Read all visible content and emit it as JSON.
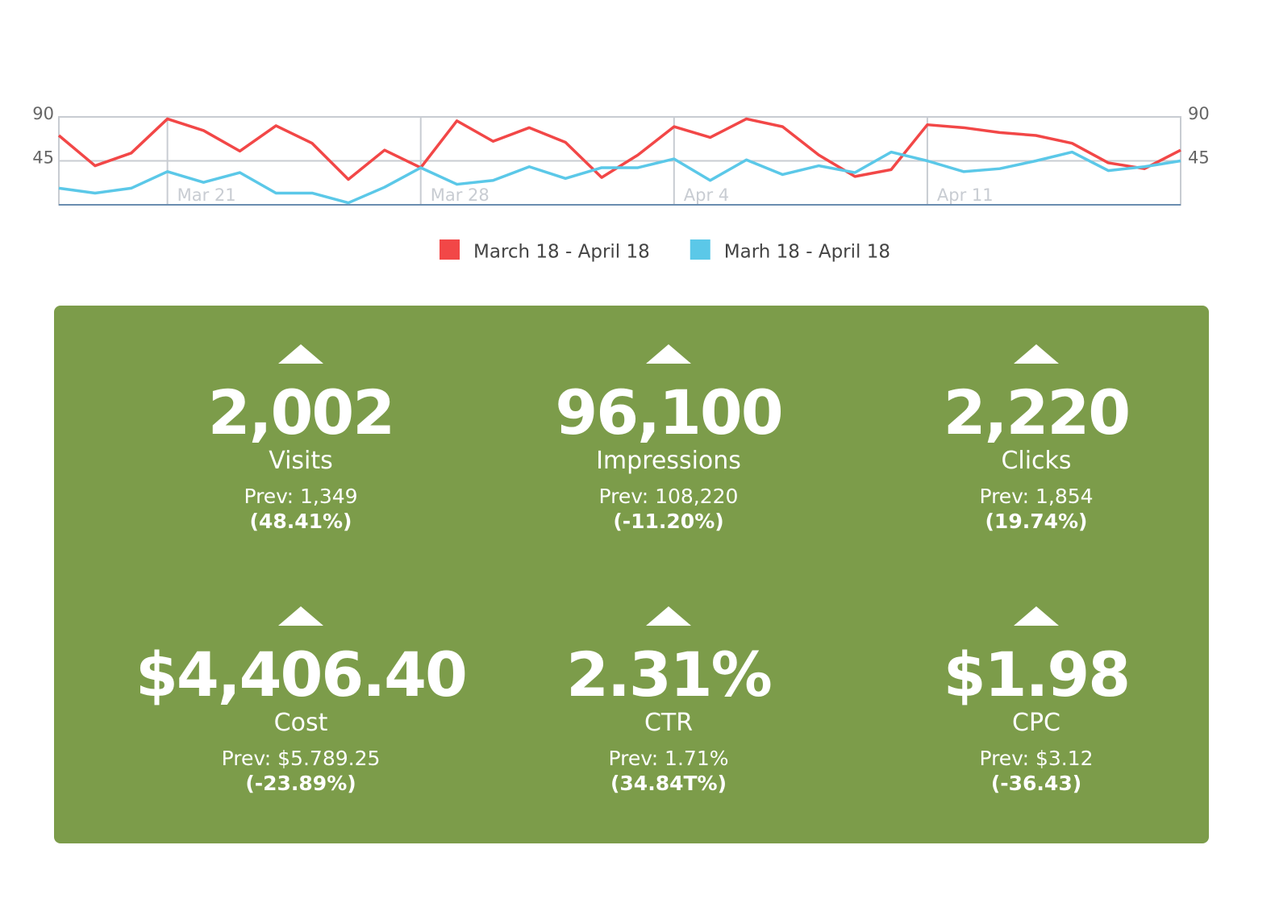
{
  "chart_data": {
    "type": "line",
    "categories": [
      null,
      null,
      null,
      "Mar 21",
      null,
      null,
      null,
      null,
      null,
      null,
      "Mar 28",
      null,
      null,
      null,
      null,
      null,
      null,
      "Apr 4",
      null,
      null,
      null,
      null,
      null,
      null,
      "Apr 11",
      null,
      null,
      null,
      null,
      null,
      null,
      null
    ],
    "series": [
      {
        "name": "March 18 - April 18",
        "color": "#f24747",
        "values": [
          71,
          40,
          53,
          88,
          76,
          55,
          81,
          63,
          26,
          56,
          38,
          86,
          65,
          79,
          64,
          28,
          51,
          80,
          69,
          88,
          80,
          51,
          29,
          36,
          82,
          79,
          74,
          71,
          63,
          43,
          37,
          56
        ]
      },
      {
        "name": "Marh 18 - April 18",
        "color": "#5bc8e8",
        "values": [
          17,
          12,
          17,
          34,
          23,
          33,
          12,
          12,
          2,
          18,
          38,
          21,
          25,
          39,
          27,
          38,
          38,
          47,
          25,
          46,
          31,
          40,
          33,
          54,
          45,
          34,
          37,
          45,
          54,
          35,
          39,
          45
        ]
      }
    ],
    "ylim": [
      0,
      90
    ],
    "yticks": [
      45,
      90
    ],
    "y2lim": [
      0,
      90
    ],
    "y2ticks": [
      45,
      90
    ],
    "grid": true
  },
  "kpis": [
    {
      "value": "2,002",
      "label": "Visits",
      "prev": "Prev: 1,349",
      "change": "(48.41%)"
    },
    {
      "value": "96,100",
      "label": "Impressions",
      "prev": "Prev: 108,220",
      "change": "(-11.20%)"
    },
    {
      "value": "2,220",
      "label": "Clicks",
      "prev": "Prev: 1,854",
      "change": "(19.74%)"
    },
    {
      "value": "$4,406.40",
      "label": "Cost",
      "prev": "Prev: $5.789.25",
      "change": "(-23.89%)"
    },
    {
      "value": "2.31%",
      "label": "CTR",
      "prev": "Prev: 1.71%",
      "change": "(34.84T%)"
    },
    {
      "value": "$1.98",
      "label": "CPC",
      "prev": "Prev: $3.12",
      "change": "(-36.43)"
    }
  ]
}
